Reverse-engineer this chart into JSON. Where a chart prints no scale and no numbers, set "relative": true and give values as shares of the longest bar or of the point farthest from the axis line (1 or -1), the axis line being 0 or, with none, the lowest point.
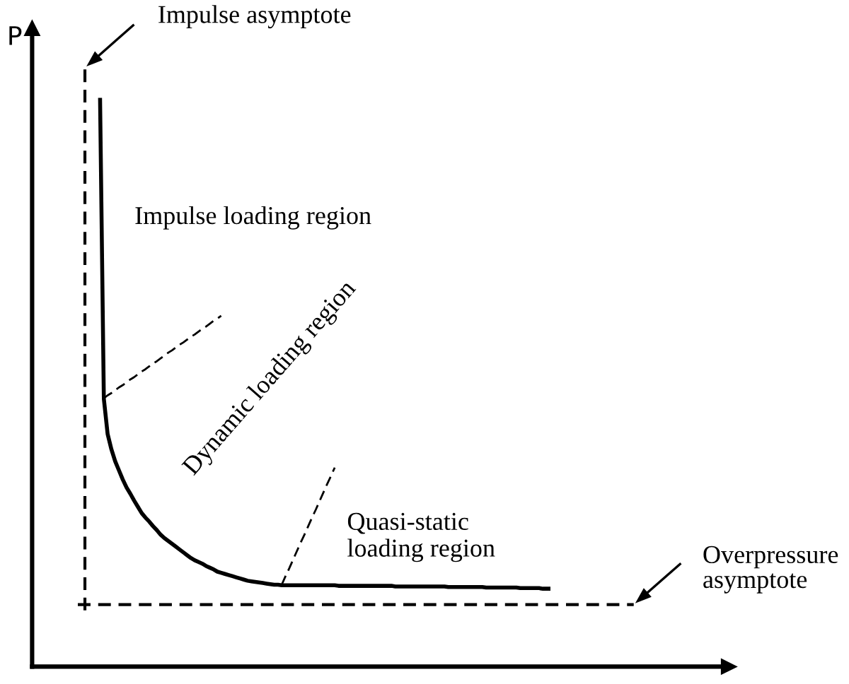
{
  "chart_data": {
    "type": "line",
    "relative": true,
    "ylabel": "P",
    "categories": [
      null,
      null,
      null,
      null,
      null,
      null,
      null,
      null,
      null,
      null,
      null,
      null,
      null,
      null,
      null,
      null,
      null,
      null,
      null,
      null,
      null,
      null,
      null,
      null,
      null,
      null,
      null,
      null,
      null,
      null,
      null,
      null,
      null,
      null,
      null,
      null,
      null,
      null,
      null,
      null,
      null,
      null,
      null,
      null,
      null,
      null,
      null,
      null,
      null,
      null,
      null,
      null,
      null,
      null,
      null,
      null,
      null,
      null,
      null,
      null,
      null,
      null,
      null,
      null,
      null,
      null,
      null,
      null,
      null,
      null,
      null,
      null,
      null,
      null,
      null,
      null,
      null,
      null,
      null,
      null,
      null,
      null,
      null,
      null,
      null,
      null,
      null,
      null,
      null,
      null,
      null,
      null,
      null,
      null,
      null,
      null,
      null,
      null,
      null,
      null,
      null,
      null,
      null,
      null,
      null,
      null,
      null,
      null,
      null,
      null,
      null,
      null,
      null,
      null,
      null,
      null,
      null,
      null,
      null,
      null,
      null,
      null,
      null,
      null,
      null,
      null,
      null,
      null,
      null,
      null,
      null,
      null,
      null,
      null,
      null,
      null,
      null,
      null,
      null,
      null,
      null,
      null,
      null,
      null,
      null,
      null
    ],
    "series": [
      {
        "color": "#000000",
        "line_style": "solid",
        "values": [
          null,
          null,
          null,
          null,
          1.0,
          0.471,
          0.409,
          0.382,
          0.361,
          0.345,
          0.329,
          0.315,
          0.304,
          0.292,
          0.281,
          0.27,
          0.262,
          0.255,
          0.247,
          0.24,
          0.232,
          0.226,
          0.221,
          0.216,
          0.211,
          0.206,
          0.201,
          0.196,
          0.191,
          0.187,
          0.184,
          0.181,
          0.177,
          0.174,
          0.171,
          0.167,
          0.165,
          0.163,
          0.161,
          0.159,
          0.157,
          0.155,
          0.153,
          0.151,
          0.15,
          0.149,
          0.148,
          0.147,
          0.146,
          0.145,
          0.144,
          0.144,
          0.143,
          0.143,
          0.143,
          0.143,
          0.143,
          0.143,
          0.143,
          0.143,
          0.143,
          0.143,
          0.143,
          0.143,
          0.143,
          0.143,
          0.143,
          0.142,
          0.142,
          0.142,
          0.142,
          0.142,
          0.142,
          0.142,
          0.142,
          0.142,
          0.142,
          0.142,
          0.142,
          0.142,
          0.142,
          0.142,
          0.141,
          0.141,
          0.141,
          0.141,
          0.141,
          0.141,
          0.141,
          0.141,
          0.141,
          0.141,
          0.141,
          0.141,
          0.141,
          0.141,
          0.14,
          0.14,
          0.14,
          0.14,
          0.14,
          0.14,
          0.14,
          0.14,
          0.14,
          0.14,
          0.139,
          0.139,
          0.139,
          0.139,
          0.139,
          0.139,
          0.139,
          0.139,
          0.139,
          0.138,
          0.138,
          0.138,
          0.138,
          0.138,
          0.138,
          0.137,
          0.137,
          0.137,
          null,
          null,
          null,
          null,
          null,
          null,
          null,
          null,
          null,
          null,
          null,
          null,
          null,
          null,
          null,
          null,
          null,
          null,
          null,
          null,
          null,
          null
        ]
      },
      {
        "color": "#000000",
        "line_style": "dashed",
        "values": [
          null,
          null,
          null,
          null,
          null,
          0.472,
          0.477,
          0.481,
          0.486,
          0.491,
          0.495,
          0.5,
          0.505,
          0.509,
          0.514,
          0.519,
          0.523,
          0.528,
          0.533,
          0.537,
          0.542,
          0.547,
          0.552,
          0.556,
          0.561,
          0.566,
          0.57,
          0.575,
          0.58,
          0.584,
          0.589,
          0.594,
          0.598,
          0.603,
          0.608,
          0.612,
          0.617,
          null,
          null,
          null,
          null,
          null,
          null,
          null,
          null,
          null,
          null,
          null,
          null,
          null,
          null,
          null,
          null,
          null,
          null,
          null,
          null,
          null,
          null,
          null,
          null,
          null,
          null,
          null,
          null,
          null,
          null,
          null,
          null,
          null,
          null,
          null,
          null,
          null,
          null,
          null,
          null,
          null,
          null,
          null,
          null,
          null,
          null,
          null,
          null,
          null,
          null,
          null,
          null,
          null,
          null,
          null,
          null,
          null,
          null,
          null,
          null,
          null,
          null,
          null,
          null,
          null,
          null,
          null,
          null,
          null,
          null,
          null,
          null,
          null,
          null,
          null,
          null,
          null,
          null,
          null,
          null,
          null,
          null,
          null,
          null,
          null,
          null,
          null,
          null,
          null,
          null,
          null,
          null,
          null,
          null,
          null,
          null,
          null,
          null,
          null,
          null,
          null,
          null,
          null,
          null,
          null,
          null,
          null,
          null,
          null
        ]
      },
      {
        "color": "#000000",
        "line_style": "dashed",
        "values": [
          null,
          null,
          null,
          null,
          null,
          null,
          null,
          null,
          null,
          null,
          null,
          null,
          null,
          null,
          null,
          null,
          null,
          null,
          null,
          null,
          null,
          null,
          null,
          null,
          null,
          null,
          null,
          null,
          null,
          null,
          null,
          null,
          null,
          null,
          null,
          null,
          null,
          null,
          null,
          null,
          null,
          null,
          null,
          null,
          null,
          null,
          null,
          null,
          null,
          null,
          null,
          null,
          0.144,
          0.159,
          0.173,
          0.188,
          0.203,
          0.218,
          0.232,
          0.247,
          0.262,
          0.276,
          0.291,
          0.306,
          0.321,
          0.335,
          0.35,
          null,
          null,
          null,
          null,
          null,
          null,
          null,
          null,
          null,
          null,
          null,
          null,
          null,
          null,
          null,
          null,
          null,
          null,
          null,
          null,
          null,
          null,
          null,
          null,
          null,
          null,
          null,
          null,
          null,
          null,
          null,
          null,
          null,
          null,
          null,
          null,
          null,
          null,
          null,
          null,
          null,
          null,
          null,
          null,
          null,
          null,
          null,
          null,
          null,
          null,
          null,
          null,
          null,
          null,
          null,
          null,
          null,
          null,
          null,
          null,
          null,
          null,
          null,
          null,
          null,
          null,
          null,
          null,
          null,
          null,
          null,
          null,
          null,
          null,
          null,
          null,
          null,
          null,
          null
        ]
      }
    ],
    "ref_lines": [
      {
        "axis": "x",
        "label": "Impulse asymptote",
        "color": "#000000",
        "line_style": "dashed"
      },
      {
        "axis": "y",
        "value": 0.109,
        "label": "Overpressure\nasymptote",
        "color": "#000000",
        "line_style": "dashed"
      }
    ],
    "annotations": [
      "Impulse loading region",
      "Dynamic loading region",
      "Quasi-static\nloading region"
    ]
  }
}
